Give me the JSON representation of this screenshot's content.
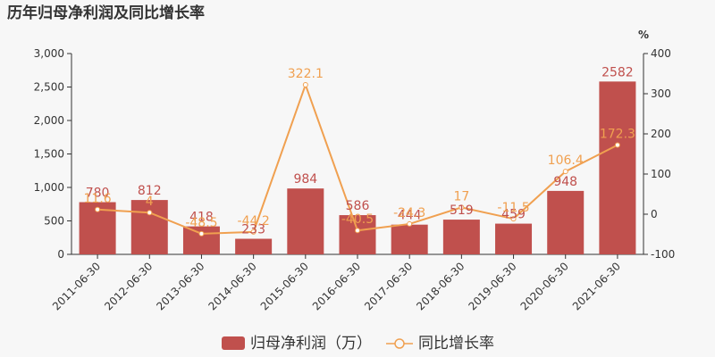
{
  "chart_data": {
    "type": "bar+line",
    "title": "历年归母净利润及同比增长率",
    "categories": [
      "2011-06-30",
      "2012-06-30",
      "2013-06-30",
      "2014-06-30",
      "2015-06-30",
      "2016-06-30",
      "2017-06-30",
      "2018-06-30",
      "2019-06-30",
      "2020-06-30",
      "2021-06-30"
    ],
    "series": [
      {
        "name": "归母净利润（万）",
        "type": "bar",
        "axis": "left",
        "color": "#c0504d",
        "values": [
          780,
          812,
          418,
          233,
          984,
          586,
          444,
          519,
          459,
          948,
          2582
        ],
        "labels": [
          "780",
          "812",
          "418",
          "233",
          "984",
          "586",
          "444",
          "519",
          "459",
          "948",
          "2582"
        ]
      },
      {
        "name": "同比增长率",
        "type": "line",
        "axis": "right",
        "color": "#f0a050",
        "values": [
          11.6,
          4,
          -48.5,
          -44.2,
          322.1,
          -40.5,
          -24.3,
          17,
          -11.5,
          106.4,
          172.3
        ],
        "labels": [
          "11.6",
          "4",
          "-48.5",
          "-44.2",
          "322.1",
          "-40.5",
          "-24.3",
          "17",
          "-11.5",
          "106.4",
          "172.3"
        ]
      }
    ],
    "left_axis": {
      "ylim": [
        0,
        3000
      ],
      "ticks": [
        0,
        500,
        1000,
        1500,
        2000,
        2500,
        3000
      ],
      "tick_labels": [
        "0",
        "500",
        "1,000",
        "1,500",
        "2,000",
        "2,500",
        "3,000"
      ]
    },
    "right_axis": {
      "unit": "%",
      "ylim": [
        -100,
        400
      ],
      "ticks": [
        -100,
        0,
        100,
        200,
        300,
        400
      ],
      "tick_labels": [
        "-100",
        "0",
        "100",
        "200",
        "300",
        "400"
      ]
    },
    "grid": false,
    "legend_position": "bottom-center"
  }
}
